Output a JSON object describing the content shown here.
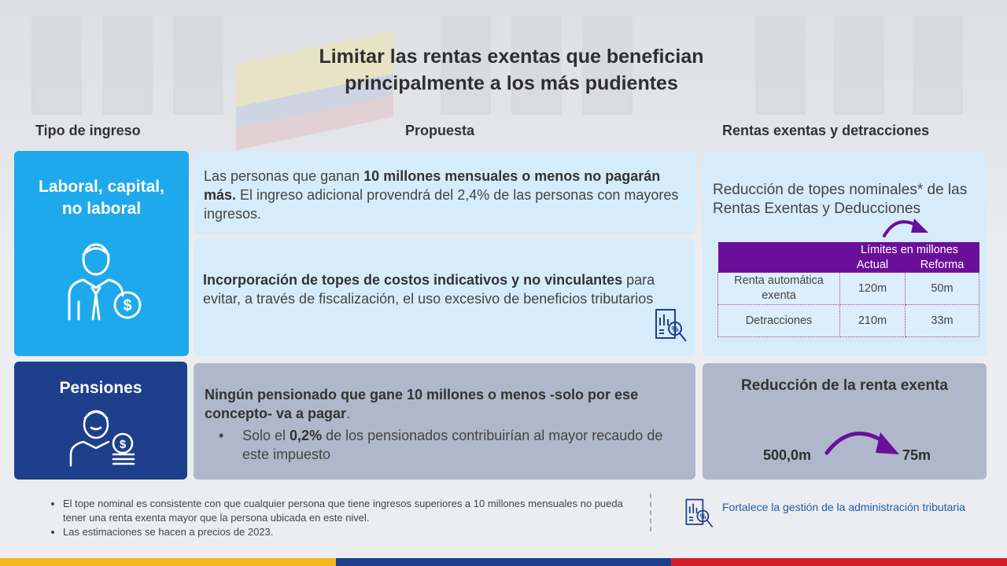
{
  "title_line1": "Limitar las rentas exentas que benefician",
  "title_line2": "principalmente a los más pudientes",
  "headers": {
    "tipo": "Tipo de ingreso",
    "propuesta": "Propuesta",
    "rentas": "Rentas exentas y detracciones"
  },
  "laboral": {
    "label_line1": "Laboral, capital,",
    "label_line2": "no laboral",
    "icon": "worker-money-icon"
  },
  "pensiones": {
    "label": "Pensiones",
    "icon": "pensioner-money-icon"
  },
  "prop1": {
    "t1": "Las personas que ganan ",
    "b1": "10 millones mensuales o menos no pagarán más.",
    "t2": " El ingreso adicional provendrá del 2,4% de las personas con mayores ingresos."
  },
  "prop2": {
    "b1": "Incorporación de topes de costos indicativos y no vinculantes",
    "t1": " para evitar, a través de fiscalización,  el uso excesivo de beneficios  tributarios",
    "icon": "audit-document-icon"
  },
  "prop3": {
    "b1": "Ningún pensionado que gane 10 millones o menos -solo por ese concepto- va a pagar",
    "t1": ".",
    "bullet_t1": "Solo el ",
    "bullet_b1": "0,2%",
    "bullet_t2": " de los pensionados contribuirían al mayor recaudo de este impuesto"
  },
  "rentas": {
    "heading": "Reducción de topes nominales* de las Rentas Exentas y Deducciones",
    "table_caption": "Límites en millones",
    "col_actual": "Actual",
    "col_reforma": "Reforma",
    "rows": [
      {
        "label": "Renta automática exenta",
        "actual": "120m",
        "reforma": "50m"
      },
      {
        "label": "Detracciones",
        "actual": "210m",
        "reforma": "33m"
      }
    ]
  },
  "reduccion": {
    "heading": "Reducción de la renta exenta",
    "from": "500,0m",
    "to": "75m"
  },
  "footnotes": [
    "El tope nominal es consistente con que cualquier persona que tiene ingresos superiores a 10 millones mensuales no pueda tener una renta exenta mayor que la persona ubicada en este nivel.",
    "Las estimaciones se hacen a precios de 2023."
  ],
  "legend_text": "Fortalece la gestión de la administración tributaria",
  "colors": {
    "cyan": "#1ea9ec",
    "navy": "#1d3f8c",
    "purple": "#6a0f9a",
    "flag_yellow": "#f3b71b",
    "flag_blue": "#1d3f8c",
    "flag_red": "#d21f2b"
  }
}
